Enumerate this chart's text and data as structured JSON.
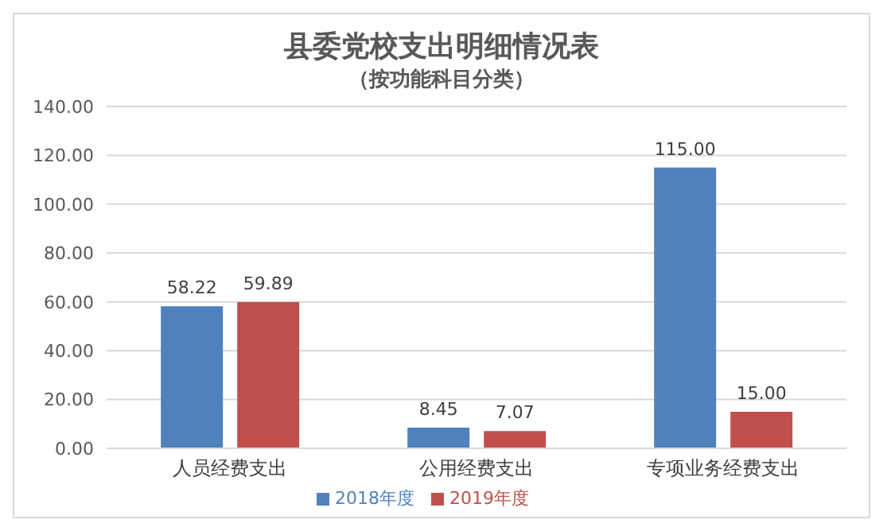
{
  "chart_data": {
    "type": "bar",
    "title": "县委党校支出明细情况表",
    "subtitle": "（按功能科目分类）",
    "categories": [
      "人员经费支出",
      "公用经费支出",
      "专项业务经费支出"
    ],
    "series": [
      {
        "name": "2018年度",
        "color": "#4f81bd",
        "values": [
          58.22,
          8.45,
          115.0
        ],
        "value_labels": [
          "58.22",
          "8.45",
          "115.00"
        ]
      },
      {
        "name": "2019年度",
        "color": "#c0504d",
        "values": [
          59.89,
          7.07,
          15.0
        ],
        "value_labels": [
          "59.89",
          "7.07",
          "15.00"
        ]
      }
    ],
    "ylim": [
      0,
      140
    ],
    "yticks": [
      {
        "value": 0,
        "label": "0.00"
      },
      {
        "value": 20,
        "label": "20.00"
      },
      {
        "value": 40,
        "label": "40.00"
      },
      {
        "value": 60,
        "label": "60.00"
      },
      {
        "value": 80,
        "label": "80.00"
      },
      {
        "value": 100,
        "label": "100.00"
      },
      {
        "value": 120,
        "label": "120.00"
      },
      {
        "value": 140,
        "label": "140.00"
      }
    ],
    "grid": "y",
    "legend": "bottom"
  }
}
